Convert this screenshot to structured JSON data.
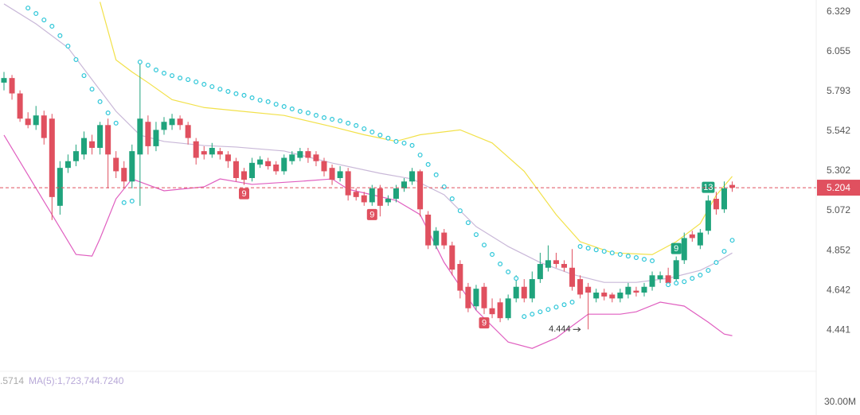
{
  "chart_data": {
    "type": "candlestick",
    "log": true,
    "ylim": [
      4.249,
      6.414
    ],
    "yticks": [
      6.329,
      6.055,
      5.793,
      5.542,
      5.302,
      5.072,
      4.852,
      4.642,
      4.441
    ],
    "grid": false,
    "up_color": "#1fa37c",
    "down_color": "#e0505f",
    "ohlc": [
      [
        5.85,
        5.92,
        5.8,
        5.88
      ],
      [
        5.88,
        5.9,
        5.74,
        5.78
      ],
      [
        5.78,
        5.8,
        5.6,
        5.62
      ],
      [
        5.62,
        5.66,
        5.56,
        5.58
      ],
      [
        5.58,
        5.7,
        5.55,
        5.64
      ],
      [
        5.64,
        5.67,
        5.46,
        5.5
      ],
      [
        5.62,
        5.65,
        5.02,
        5.15
      ],
      [
        5.1,
        5.36,
        5.05,
        5.32
      ],
      [
        5.32,
        5.4,
        5.29,
        5.36
      ],
      [
        5.36,
        5.46,
        5.33,
        5.42
      ],
      [
        5.4,
        5.54,
        5.37,
        5.5
      ],
      [
        5.48,
        5.52,
        5.4,
        5.44
      ],
      [
        5.44,
        5.6,
        5.4,
        5.58
      ],
      [
        5.58,
        5.62,
        5.2,
        5.4
      ],
      [
        5.38,
        5.42,
        5.26,
        5.3
      ],
      [
        5.32,
        5.36,
        5.2,
        5.24
      ],
      [
        5.24,
        5.46,
        5.2,
        5.42
      ],
      [
        5.4,
        6.0,
        5.1,
        5.62
      ],
      [
        5.6,
        5.64,
        5.4,
        5.45
      ],
      [
        5.45,
        5.6,
        5.42,
        5.55
      ],
      [
        5.55,
        5.63,
        5.52,
        5.6
      ],
      [
        5.58,
        5.65,
        5.55,
        5.62
      ],
      [
        5.62,
        5.64,
        5.55,
        5.58
      ],
      [
        5.58,
        5.6,
        5.46,
        5.5
      ],
      [
        5.48,
        5.5,
        5.34,
        5.38
      ],
      [
        5.42,
        5.45,
        5.37,
        5.4
      ],
      [
        5.4,
        5.47,
        5.38,
        5.44
      ],
      [
        5.42,
        5.44,
        5.37,
        5.4
      ],
      [
        5.4,
        5.42,
        5.32,
        5.36
      ],
      [
        5.36,
        5.38,
        5.24,
        5.26
      ],
      [
        5.3,
        5.32,
        5.22,
        5.25
      ],
      [
        5.26,
        5.38,
        5.24,
        5.35
      ],
      [
        5.34,
        5.39,
        5.32,
        5.37
      ],
      [
        5.36,
        5.38,
        5.31,
        5.33
      ],
      [
        5.34,
        5.36,
        5.28,
        5.3
      ],
      [
        5.3,
        5.4,
        5.28,
        5.38
      ],
      [
        5.36,
        5.42,
        5.34,
        5.4
      ],
      [
        5.38,
        5.44,
        5.36,
        5.42
      ],
      [
        5.42,
        5.44,
        5.35,
        5.38
      ],
      [
        5.4,
        5.42,
        5.33,
        5.36
      ],
      [
        5.36,
        5.38,
        5.27,
        5.3
      ],
      [
        5.32,
        5.34,
        5.22,
        5.25
      ],
      [
        5.26,
        5.33,
        5.24,
        5.3
      ],
      [
        5.3,
        5.32,
        5.13,
        5.16
      ],
      [
        5.18,
        5.2,
        5.13,
        5.15
      ],
      [
        5.16,
        5.18,
        5.1,
        5.12
      ],
      [
        5.12,
        5.22,
        5.1,
        5.2
      ],
      [
        5.2,
        5.22,
        5.04,
        5.1
      ],
      [
        5.12,
        5.16,
        5.1,
        5.14
      ],
      [
        5.14,
        5.22,
        5.12,
        5.2
      ],
      [
        5.2,
        5.26,
        5.18,
        5.24
      ],
      [
        5.24,
        5.32,
        5.22,
        5.3
      ],
      [
        5.3,
        5.31,
        5.04,
        5.08
      ],
      [
        5.05,
        5.07,
        4.86,
        4.88
      ],
      [
        4.88,
        4.98,
        4.86,
        4.96
      ],
      [
        4.95,
        4.97,
        4.86,
        4.88
      ],
      [
        4.88,
        4.9,
        4.72,
        4.75
      ],
      [
        4.78,
        4.8,
        4.6,
        4.64
      ],
      [
        4.66,
        4.68,
        4.53,
        4.55
      ],
      [
        4.56,
        4.67,
        4.54,
        4.65
      ],
      [
        4.66,
        4.68,
        4.52,
        4.55
      ],
      [
        4.55,
        4.6,
        4.5,
        4.52
      ],
      [
        4.58,
        4.6,
        4.48,
        4.5
      ],
      [
        4.5,
        4.62,
        4.49,
        4.6
      ],
      [
        4.6,
        4.72,
        4.58,
        4.66
      ],
      [
        4.66,
        4.7,
        4.58,
        4.6
      ],
      [
        4.6,
        4.74,
        4.58,
        4.7
      ],
      [
        4.7,
        4.84,
        4.68,
        4.78
      ],
      [
        4.76,
        4.88,
        4.74,
        4.8
      ],
      [
        4.8,
        4.84,
        4.76,
        4.78
      ],
      [
        4.78,
        4.8,
        4.74,
        4.76
      ],
      [
        4.76,
        4.86,
        4.64,
        4.66
      ],
      [
        4.7,
        4.72,
        4.6,
        4.62
      ],
      [
        4.66,
        4.68,
        4.444,
        4.63
      ],
      [
        4.6,
        4.65,
        4.58,
        4.63
      ],
      [
        4.63,
        4.65,
        4.59,
        4.61
      ],
      [
        4.62,
        4.63,
        4.58,
        4.6
      ],
      [
        4.6,
        4.65,
        4.58,
        4.63
      ],
      [
        4.62,
        4.68,
        4.6,
        4.66
      ],
      [
        4.64,
        4.66,
        4.61,
        4.63
      ],
      [
        4.63,
        4.68,
        4.61,
        4.66
      ],
      [
        4.66,
        4.74,
        4.64,
        4.72
      ],
      [
        4.7,
        4.74,
        4.68,
        4.72
      ],
      [
        4.72,
        4.76,
        4.66,
        4.68
      ],
      [
        4.7,
        4.82,
        4.68,
        4.8
      ],
      [
        4.8,
        4.95,
        4.78,
        4.92
      ],
      [
        4.94,
        4.96,
        4.9,
        4.92
      ],
      [
        4.88,
        4.97,
        4.86,
        4.95
      ],
      [
        4.96,
        5.16,
        4.94,
        5.13
      ],
      [
        5.14,
        5.18,
        5.05,
        5.08
      ],
      [
        5.08,
        5.24,
        5.06,
        5.2
      ],
      [
        5.22,
        5.24,
        5.18,
        5.204
      ]
    ],
    "bands": [
      {
        "color": "#f2e14a",
        "x": [
          12,
          14,
          16,
          18,
          21,
          25,
          29,
          35,
          41,
          45,
          49,
          52,
          57,
          61,
          65,
          69,
          72,
          76,
          81,
          84,
          87,
          89,
          91
        ],
        "values": [
          6.4,
          6.0,
          5.92,
          5.85,
          5.74,
          5.69,
          5.67,
          5.64,
          5.57,
          5.52,
          5.48,
          5.52,
          5.55,
          5.47,
          5.3,
          5.05,
          4.9,
          4.84,
          4.83,
          4.9,
          5.0,
          5.16,
          5.27
        ]
      },
      {
        "color": "#c9b8d8",
        "x": [
          0,
          4,
          8,
          11,
          14,
          17,
          20,
          25,
          29,
          35,
          41,
          47,
          51,
          55,
          59,
          63,
          67,
          71,
          75,
          79,
          83,
          87,
          89,
          91
        ],
        "values": [
          6.386,
          6.246,
          6.082,
          5.87,
          5.666,
          5.518,
          5.479,
          5.454,
          5.445,
          5.421,
          5.349,
          5.288,
          5.255,
          5.163,
          4.983,
          4.874,
          4.788,
          4.725,
          4.683,
          4.683,
          4.704,
          4.746,
          4.788,
          4.839
        ]
      },
      {
        "color": "#e05fc0",
        "x": [
          0,
          3,
          6,
          9,
          11,
          12,
          14,
          16,
          20,
          25,
          27,
          31,
          37,
          41,
          43,
          49,
          52,
          55,
          59,
          63,
          66,
          69,
          71,
          73,
          77,
          79,
          82,
          85,
          88,
          90,
          91
        ],
        "values": [
          5.518,
          5.278,
          5.05,
          4.831,
          4.822,
          4.917,
          5.14,
          5.255,
          5.186,
          5.209,
          5.255,
          5.223,
          5.241,
          5.255,
          5.195,
          5.131,
          5.05,
          4.788,
          4.54,
          4.382,
          4.351,
          4.402,
          4.461,
          4.52,
          4.52,
          4.532,
          4.581,
          4.561,
          4.48,
          4.421,
          4.413
        ]
      }
    ],
    "sar_color": "#2cc6d8",
    "sar": [
      null,
      null,
      null,
      6.357,
      6.318,
      6.273,
      6.229,
      6.164,
      6.093,
      6.002,
      5.896,
      5.808,
      5.727,
      5.656,
      5.592,
      5.118,
      5.127,
      5.986,
      5.965,
      5.933,
      5.912,
      5.896,
      5.88,
      5.87,
      5.855,
      5.839,
      5.824,
      5.808,
      5.793,
      5.778,
      5.768,
      5.752,
      5.737,
      5.727,
      5.711,
      5.696,
      5.681,
      5.666,
      5.656,
      5.641,
      5.626,
      5.616,
      5.606,
      5.592,
      5.577,
      5.557,
      5.537,
      5.518,
      5.499,
      5.479,
      5.469,
      5.455,
      5.397,
      5.34,
      5.279,
      5.209,
      5.14,
      5.072,
      5.005,
      4.939,
      4.882,
      4.831,
      4.78,
      4.738,
      4.704,
      4.508,
      4.52,
      4.532,
      4.544,
      4.556,
      4.568,
      4.581,
      4.874,
      4.865,
      4.856,
      4.848,
      4.839,
      4.831,
      4.822,
      4.814,
      4.805,
      4.797,
      null,
      4.671,
      4.679,
      4.687,
      4.704,
      4.721,
      4.746,
      4.788,
      4.848,
      4.908
    ],
    "td_labels": [
      {
        "label": "9",
        "index": 30,
        "side": "below"
      },
      {
        "label": "9",
        "index": 46,
        "side": "below"
      },
      {
        "label": "9",
        "index": 60,
        "side": "below"
      },
      {
        "label": "9",
        "index": 84,
        "side": "above"
      },
      {
        "label": "13",
        "index": 88,
        "side": "above"
      }
    ],
    "low_label": "4.444",
    "low_index": 73,
    "last_price": 5.204,
    "last_price_label": "5.204",
    "volume_value": ".5714",
    "volume_ma": "MA(5):1,723,744.7240",
    "volume_axis_label": "30.00M"
  }
}
